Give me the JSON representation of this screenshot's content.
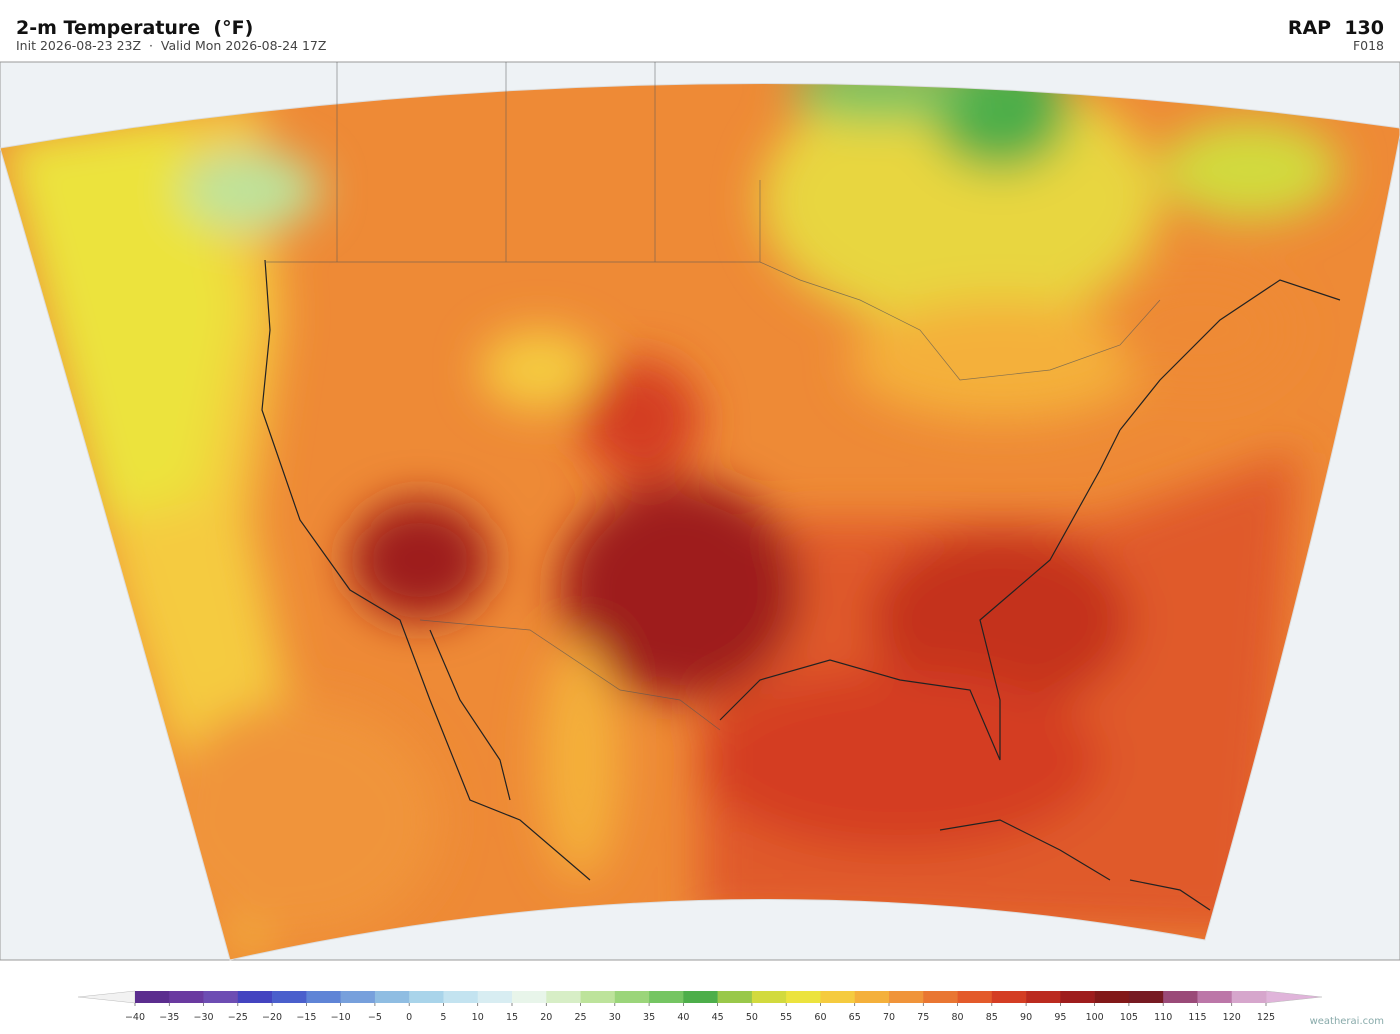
{
  "header": {
    "title": "2-m Temperature  (°F)",
    "subtitle": "Init 2026-08-23 23Z  ·  Valid Mon 2026-08-24 17Z",
    "model": "RAP  130",
    "forecast_hour": "F018"
  },
  "colorbar": {
    "ticks": [
      {
        "value": -40,
        "label": "−40"
      },
      {
        "value": -35,
        "label": "−35"
      },
      {
        "value": -30,
        "label": "−30"
      },
      {
        "value": -25,
        "label": "−25"
      },
      {
        "value": -20,
        "label": "−20"
      },
      {
        "value": -15,
        "label": "−15"
      },
      {
        "value": -10,
        "label": "−10"
      },
      {
        "value": -5,
        "label": "−5"
      },
      0,
      5,
      10,
      15,
      20,
      25,
      30,
      35,
      40,
      45,
      50,
      55,
      60,
      65,
      70,
      75,
      80,
      85,
      90,
      95,
      100,
      105,
      110,
      115,
      120,
      125
    ],
    "colors": [
      "#5b2d8e",
      "#6a3aa0",
      "#6d4db3",
      "#4444c0",
      "#4a5fcc",
      "#5f84d6",
      "#77a0dc",
      "#8fbde2",
      "#a9d4ea",
      "#c3e3f0",
      "#d8edf2",
      "#e8f5ea",
      "#d7eec6",
      "#bde39b",
      "#9bd57a",
      "#75c562",
      "#4dae4a",
      "#99c84a",
      "#d2da3e",
      "#ece33e",
      "#f5cb3f",
      "#f4b03b",
      "#f0943a",
      "#e97632",
      "#e35a2a",
      "#d43d23",
      "#bb2a1f",
      "#9e1c1c",
      "#821818",
      "#771a22",
      "#9a4a78",
      "#bc77a8",
      "#d6a6cc"
    ],
    "under_color": "#f2f2f2",
    "over_color": "#e0b4da"
  },
  "watermark": "weatherai.com"
}
